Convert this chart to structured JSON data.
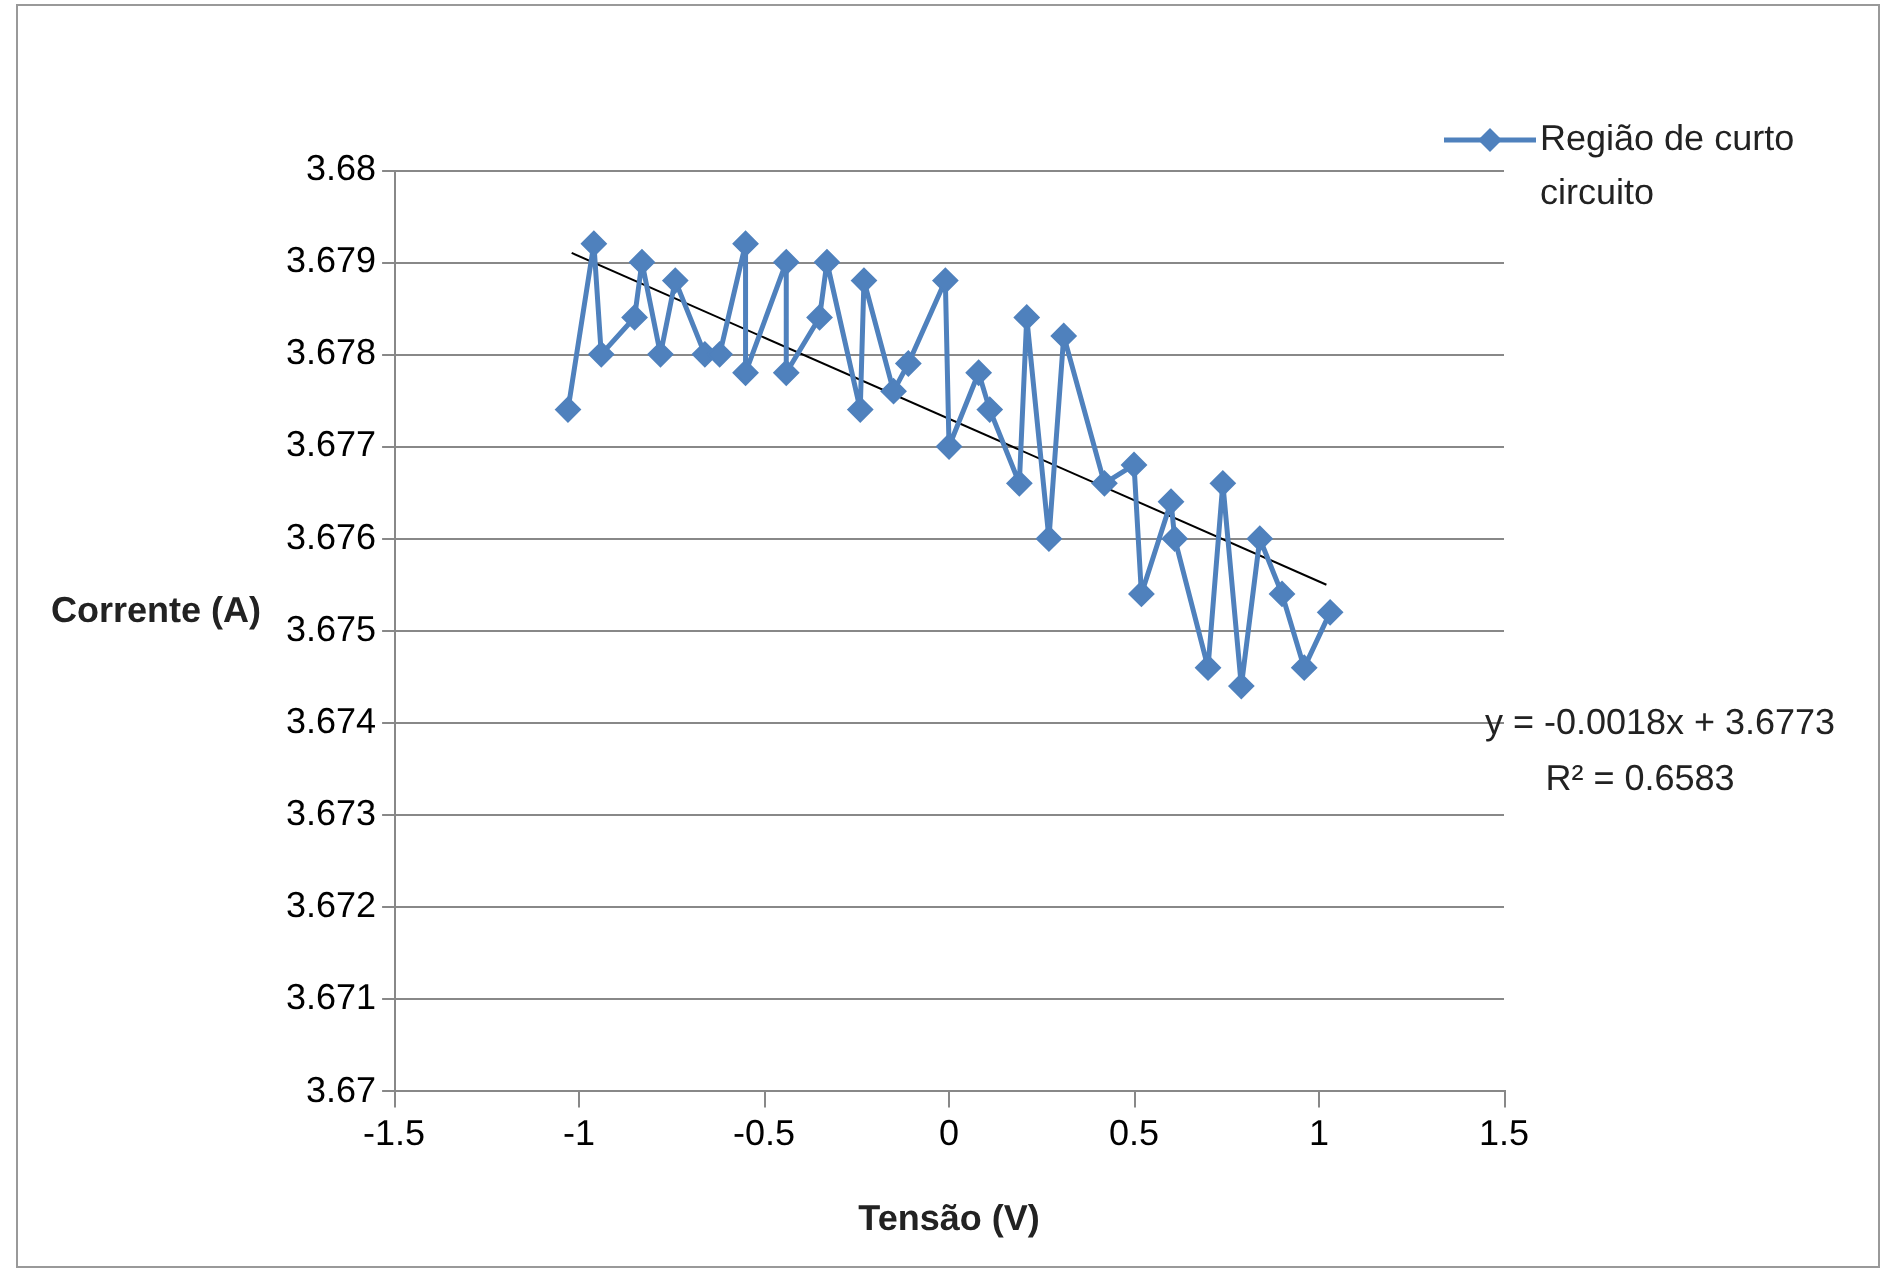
{
  "chart_data": {
    "type": "line",
    "xlabel": "Tensão (V)",
    "ylabel": "Corrente (A)",
    "xlim": [
      -1.5,
      1.5
    ],
    "xticks": [
      -1.5,
      -1,
      -0.5,
      0,
      0.5,
      1,
      1.5
    ],
    "ylim": [
      3.67,
      3.68
    ],
    "yticks": [
      3.67,
      3.671,
      3.672,
      3.673,
      3.674,
      3.675,
      3.676,
      3.677,
      3.678,
      3.679,
      3.68
    ],
    "grid": "y",
    "legend": "top right",
    "marker": "diamond",
    "line_style": "solid",
    "annotations": [
      "y = -0.0018x + 3.6773",
      "R² = 0.6583"
    ],
    "series": [
      {
        "name": "Região de curto circuito",
        "color": "#4f81bd",
        "x": [
          -1.03,
          -0.96,
          -0.94,
          -0.85,
          -0.83,
          -0.78,
          -0.74,
          -0.66,
          -0.62,
          -0.55,
          -0.55,
          -0.44,
          -0.44,
          -0.35,
          -0.33,
          -0.24,
          -0.23,
          -0.15,
          -0.11,
          -0.01,
          0.0,
          0.08,
          0.11,
          0.19,
          0.21,
          0.27,
          0.31,
          0.42,
          0.5,
          0.52,
          0.6,
          0.61,
          0.7,
          0.74,
          0.79,
          0.84,
          0.9,
          0.96,
          1.03
        ],
        "values": [
          3.6774,
          3.6792,
          3.678,
          3.6784,
          3.679,
          3.678,
          3.6788,
          3.678,
          3.678,
          3.6792,
          3.6778,
          3.679,
          3.6778,
          3.6784,
          3.679,
          3.6774,
          3.6788,
          3.6776,
          3.6779,
          3.6788,
          3.677,
          3.6778,
          3.6774,
          3.6766,
          3.6784,
          3.676,
          3.6782,
          3.6766,
          3.6768,
          3.6754,
          3.6764,
          3.676,
          3.6746,
          3.6766,
          3.6744,
          3.676,
          3.6754,
          3.6746,
          3.6752
        ]
      },
      {
        "type": "line",
        "color": "#000000",
        "marker": "none",
        "x": [
          -1.02,
          1.02
        ],
        "values": [
          3.6791,
          3.6755
        ]
      }
    ]
  }
}
